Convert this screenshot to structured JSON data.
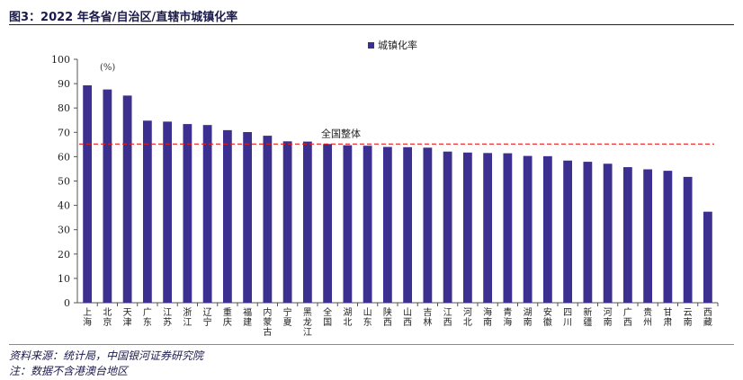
{
  "figure_title": "图3：2022 年各省/自治区/直辖市城镇化率",
  "source_note": "资料来源：统计局，中国银河证券研究院",
  "footnote": "注：数据不含港澳台地区",
  "colors": {
    "bar": "#3b2f8f",
    "reference": "#e02020",
    "title": "#1a1a4d"
  },
  "chart_data": {
    "type": "bar",
    "title": "",
    "xlabel": "",
    "ylabel": "",
    "unit_label": "(%)",
    "legend": [
      "城镇化率"
    ],
    "legend_position": "top-center",
    "ylim": [
      0,
      100
    ],
    "yticks": [
      0,
      10,
      20,
      30,
      40,
      50,
      60,
      70,
      80,
      90,
      100
    ],
    "categories": [
      "上海",
      "北京",
      "天津",
      "广东",
      "江苏",
      "浙江",
      "辽宁",
      "重庆",
      "福建",
      "内蒙古",
      "宁夏",
      "黑龙江",
      "全国",
      "湖北",
      "山东",
      "陕西",
      "山西",
      "吉林",
      "江西",
      "河北",
      "海南",
      "青海",
      "湖南",
      "安徽",
      "四川",
      "新疆",
      "河南",
      "广西",
      "贵州",
      "甘肃",
      "云南",
      "西藏"
    ],
    "series": [
      {
        "name": "城镇化率",
        "values": [
          89.3,
          87.6,
          85.1,
          74.8,
          74.4,
          73.4,
          73.0,
          70.9,
          70.1,
          68.6,
          66.3,
          66.2,
          65.2,
          64.7,
          64.5,
          64.0,
          63.9,
          63.7,
          62.1,
          61.7,
          61.5,
          61.4,
          60.3,
          60.2,
          58.4,
          57.9,
          57.1,
          55.7,
          54.8,
          54.2,
          51.7,
          37.4
        ]
      }
    ],
    "reference_line": {
      "label": "全国整体",
      "value": 65.2
    },
    "grid": false
  }
}
